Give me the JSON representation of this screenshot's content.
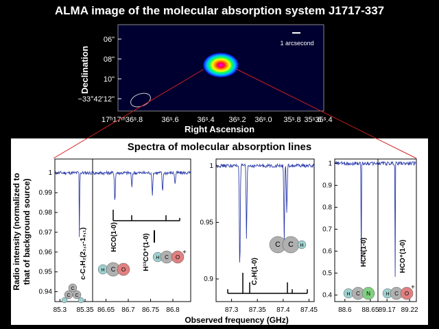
{
  "title": "ALMA image of the molecular absorption system J1717-337",
  "image": {
    "ylabel": "Declination",
    "xlabel": "Right Ascension",
    "yticks": [
      "06\"",
      "08\"",
      "10\"",
      "−33°42'12\""
    ],
    "xticks": [
      "17ʰ17ᵐ36ˢ.8",
      "36ˢ.6",
      "36ˢ.4",
      "36ˢ.2",
      "36ˢ.0",
      "35ˢ.8",
      "35ˢ.6",
      "35ˢ.4"
    ],
    "scalebar_label": "1 arcsecond"
  },
  "spectra": {
    "title": "Spectra of molecular absorption lines",
    "ylabel": [
      "Radio intensity (normalized to",
      "that of background source)"
    ],
    "xlabel": "Observed frequency (GHz)"
  },
  "chart_data": [
    {
      "type": "line",
      "panel": "c-C3H2",
      "x_ticks": [
        85.3,
        85.35
      ],
      "xlim": [
        85.29,
        85.365
      ],
      "ylim": [
        0.935,
        1.007
      ],
      "y_ticks": [
        1,
        0.99,
        0.98,
        0.97,
        0.96,
        0.95,
        0.94
      ],
      "lines": [
        {
          "freq": 85.339,
          "depth": 0.949,
          "label": "c-C₃H₂(2₁,₂-1₀,₁)"
        }
      ],
      "molecule": "c-C3H2"
    },
    {
      "type": "line",
      "panel": "HCO",
      "x_ticks": [
        86.65,
        86.7,
        86.75,
        86.8
      ],
      "xlim": [
        86.62,
        86.84
      ],
      "ylim": [
        0.935,
        1.007
      ],
      "lines": [
        {
          "freq": 86.67,
          "depth": 0.985,
          "label": "HCO(1-0)"
        },
        {
          "freq": 86.708,
          "depth": 0.992
        },
        {
          "freq": 86.777,
          "depth": 0.99
        },
        {
          "freq": 86.805,
          "depth": 0.994
        },
        {
          "freq": 86.754,
          "depth": 0.988,
          "label": "H¹³CO⁺(1-0)"
        }
      ],
      "molecules": [
        "HCO",
        "H13CO+"
      ]
    },
    {
      "type": "line",
      "panel": "C2H",
      "x_ticks": [
        87.3,
        87.35,
        87.4,
        87.45
      ],
      "xlim": [
        87.27,
        87.46
      ],
      "ylim": [
        0.88,
        1.006
      ],
      "y_ticks": [
        1,
        0.95,
        0.9
      ],
      "lines": [
        {
          "freq": 87.316,
          "depth": 0.904,
          "label": "C₂H(1-0)"
        },
        {
          "freq": 87.329,
          "depth": 0.935
        },
        {
          "freq": 87.402,
          "depth": 0.933
        },
        {
          "freq": 87.407,
          "depth": 0.957
        }
      ],
      "molecule": "C2H"
    },
    {
      "type": "line",
      "panel": "HCN",
      "x_ticks": [
        88.6,
        88.65
      ],
      "xlim": [
        88.58,
        88.665
      ],
      "ylim": [
        0.37,
        1.02
      ],
      "y_ticks": [
        1,
        0.9,
        0.8,
        0.7,
        0.6,
        0.5,
        0.4
      ],
      "lines": [
        {
          "freq": 88.632,
          "depth": 0.5,
          "label": "HCN(1-0)"
        }
      ],
      "molecule": "HCN"
    },
    {
      "type": "line",
      "panel": "HCO+",
      "x_ticks": [
        89.17,
        89.22
      ],
      "xlim": [
        89.15,
        89.235
      ],
      "ylim": [
        0.37,
        1.02
      ],
      "lines": [
        {
          "freq": 89.188,
          "depth": 0.44,
          "label": "HCO⁺(1-0)"
        }
      ],
      "molecule": "HCO+"
    }
  ]
}
